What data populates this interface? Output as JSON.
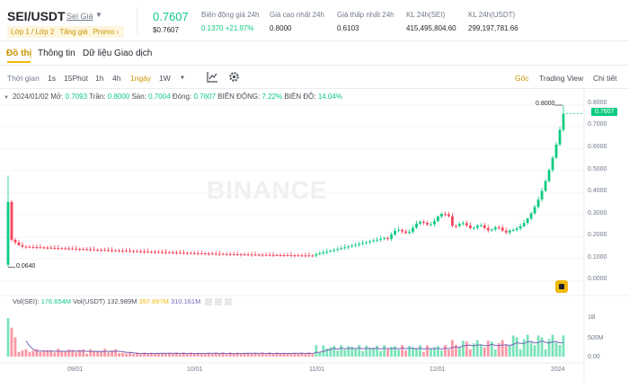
{
  "header": {
    "symbol": "SEI/USDT",
    "symbol_sub": "Sei Giá",
    "tags": [
      "Lớp 1 / Lớp 2",
      "Tăng giá",
      "Promo ›"
    ],
    "last_price": "0.7607",
    "last_price_usd": "$0.7607",
    "stats": [
      {
        "label": "Biến động giá 24h",
        "value": "0.1370 +21.97%",
        "up": true
      },
      {
        "label": "Giá cao nhất 24h",
        "value": "0.8000",
        "up": false
      },
      {
        "label": "Giá thấp nhất 24h",
        "value": "0.6103",
        "up": false
      },
      {
        "label": "KL 24h(SEI)",
        "value": "415,495,804.60",
        "up": false
      },
      {
        "label": "KL 24h(USDT)",
        "value": "299,197,781.66",
        "up": false
      }
    ]
  },
  "tabs": [
    "Đồ thị",
    "Thông tin",
    "Dữ liệu Giao dịch"
  ],
  "toolbar": {
    "time_label": "Thời gian",
    "intervals": [
      "1s",
      "15Phút",
      "1h",
      "4h",
      "1ngày",
      "1W"
    ],
    "active_interval": "1ngày",
    "right": [
      "Gốc",
      "Trading View",
      "Chi tiết"
    ],
    "icons": [
      "indicator-icon",
      "settings-icon"
    ]
  },
  "ohlc": {
    "date": "2024/01/02",
    "open_label": "Mở:",
    "open": "0.7093",
    "high_label": "Trần:",
    "high": "0.8000",
    "low_label": "Sàn:",
    "low": "0.7004",
    "close_label": "Đóng:",
    "close": "0.7607",
    "change_label": "BIẾN ĐỘNG:",
    "change": "7.22%",
    "amp_label": "BIÊN ĐỘ:",
    "amp": "14.04%"
  },
  "watermark": "BINANCE",
  "price_axis": [
    "0.8000",
    "0.7000",
    "0.6000",
    "0.5000",
    "0.4000",
    "0.3000",
    "0.2000",
    "0.1000",
    "0.0000"
  ],
  "current_price_tag": "0.7607",
  "high_marker": "0.8000",
  "low_marker": "0.0640",
  "volume": {
    "sei_label": "Vol(SEI):",
    "sei": "176.654M",
    "usdt_label": "Vol(USDT)",
    "usdt": "132.989M",
    "ma1": "397.697M",
    "ma2": "310.161M",
    "axis": [
      "1B",
      "500M",
      "0.00"
    ]
  },
  "x_axis": [
    "09/01",
    "10/01",
    "11/01",
    "12/01",
    "2024"
  ],
  "colors": {
    "up": "#0ecb81",
    "down": "#f6465d",
    "accent": "#f0b90b",
    "ma": "#7a65b8"
  }
}
